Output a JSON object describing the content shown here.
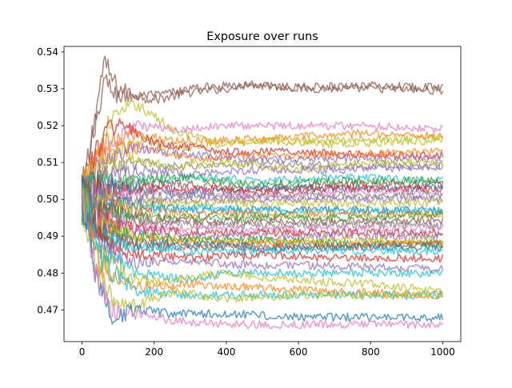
{
  "chart_data": {
    "type": "line",
    "title": "Exposure over runs",
    "xlabel": "",
    "ylabel": "",
    "xlim": [
      -50,
      1050
    ],
    "ylim": [
      0.4614,
      0.5415
    ],
    "x_ticks": [
      0,
      200,
      400,
      600,
      800,
      1000
    ],
    "x_tick_labels": [
      "0",
      "200",
      "400",
      "600",
      "800",
      "1000"
    ],
    "y_ticks": [
      0.47,
      0.48,
      0.49,
      0.5,
      0.51,
      0.52,
      0.53,
      0.54
    ],
    "y_tick_labels": [
      "0.47",
      "0.48",
      "0.49",
      "0.50",
      "0.51",
      "0.52",
      "0.53",
      "0.54"
    ],
    "grid": false,
    "legend": "none",
    "x_range": [
      0,
      1000
    ],
    "series_style": "alpha 0.7 thin lines, tab10 color cycle",
    "palette": [
      "#1f77b4",
      "#ff7f0e",
      "#2ca02c",
      "#d62728",
      "#9467bd",
      "#8c564b",
      "#e377c2",
      "#7f7f7f",
      "#bcbd22",
      "#17becf"
    ],
    "series": [
      {
        "color": "#8c564b",
        "x": [
          0,
          20,
          60,
          100,
          200,
          300,
          400,
          460,
          600,
          800,
          1000
        ],
        "values": [
          0.5,
          0.512,
          0.537,
          0.53,
          0.527,
          0.529,
          0.53,
          0.5315,
          0.53,
          0.53,
          0.5295
        ]
      },
      {
        "color": "#8c564b",
        "x": [
          0,
          20,
          60,
          100,
          200,
          300,
          400,
          600,
          800,
          1000
        ],
        "values": [
          0.5,
          0.51,
          0.532,
          0.528,
          0.528,
          0.53,
          0.531,
          0.5305,
          0.531,
          0.5303
        ]
      },
      {
        "color": "#bcbd22",
        "x": [
          0,
          30,
          80,
          150,
          250,
          350,
          500,
          700,
          1000
        ],
        "values": [
          0.5,
          0.508,
          0.522,
          0.526,
          0.519,
          0.516,
          0.516,
          0.516,
          0.517
        ]
      },
      {
        "color": "#e377c2",
        "x": [
          0,
          50,
          150,
          250,
          400,
          600,
          800,
          1000
        ],
        "values": [
          0.5,
          0.512,
          0.52,
          0.519,
          0.52,
          0.52,
          0.52,
          0.519
        ]
      },
      {
        "color": "#ff7f0e",
        "x": [
          0,
          50,
          150,
          250,
          400,
          600,
          800,
          1000
        ],
        "values": [
          0.5,
          0.514,
          0.518,
          0.516,
          0.516,
          0.517,
          0.518,
          0.517
        ]
      },
      {
        "color": "#bcbd22",
        "x": [
          0,
          50,
          150,
          300,
          500,
          700,
          1000
        ],
        "values": [
          0.5,
          0.51,
          0.516,
          0.514,
          0.516,
          0.515,
          0.516
        ]
      },
      {
        "color": "#d62728",
        "x": [
          0,
          50,
          100,
          200,
          400,
          600,
          800,
          1000
        ],
        "values": [
          0.5,
          0.516,
          0.521,
          0.515,
          0.513,
          0.513,
          0.512,
          0.512
        ]
      },
      {
        "color": "#ff7f0e",
        "x": [
          0,
          50,
          150,
          300,
          500,
          700,
          1000
        ],
        "values": [
          0.5,
          0.512,
          0.514,
          0.511,
          0.512,
          0.512,
          0.513
        ]
      },
      {
        "color": "#9467bd",
        "x": [
          0,
          50,
          150,
          300,
          500,
          700,
          1000
        ],
        "values": [
          0.5,
          0.509,
          0.514,
          0.512,
          0.511,
          0.511,
          0.511
        ]
      },
      {
        "color": "#7f7f7f",
        "x": [
          0,
          50,
          150,
          300,
          500,
          700,
          1000
        ],
        "values": [
          0.5,
          0.506,
          0.51,
          0.509,
          0.51,
          0.509,
          0.509
        ]
      },
      {
        "color": "#bcbd22",
        "x": [
          0,
          40,
          120,
          250,
          400,
          600,
          800,
          1000
        ],
        "values": [
          0.5,
          0.507,
          0.511,
          0.509,
          0.51,
          0.508,
          0.51,
          0.51
        ]
      },
      {
        "color": "#9467bd",
        "x": [
          0,
          50,
          150,
          300,
          500,
          700,
          1000
        ],
        "values": [
          0.5,
          0.505,
          0.508,
          0.507,
          0.508,
          0.508,
          0.509
        ]
      },
      {
        "color": "#17becf",
        "x": [
          0,
          50,
          150,
          300,
          500,
          700,
          1000
        ],
        "values": [
          0.5,
          0.503,
          0.505,
          0.506,
          0.505,
          0.506,
          0.505
        ]
      },
      {
        "color": "#2ca02c",
        "x": [
          0,
          50,
          150,
          300,
          500,
          700,
          1000
        ],
        "values": [
          0.5,
          0.504,
          0.505,
          0.506,
          0.504,
          0.505,
          0.505
        ]
      },
      {
        "color": "#8c564b",
        "x": [
          0,
          50,
          150,
          300,
          500,
          700,
          1000
        ],
        "values": [
          0.5,
          0.502,
          0.504,
          0.504,
          0.503,
          0.504,
          0.504
        ]
      },
      {
        "color": "#1f77b4",
        "x": [
          0,
          50,
          150,
          300,
          500,
          700,
          1000
        ],
        "values": [
          0.5,
          0.503,
          0.503,
          0.502,
          0.503,
          0.503,
          0.503
        ]
      },
      {
        "color": "#d62728",
        "x": [
          0,
          50,
          150,
          300,
          500,
          700,
          1000
        ],
        "values": [
          0.5,
          0.502,
          0.503,
          0.503,
          0.502,
          0.503,
          0.503
        ]
      },
      {
        "color": "#e377c2",
        "x": [
          0,
          50,
          150,
          300,
          500,
          700,
          1000
        ],
        "values": [
          0.5,
          0.501,
          0.502,
          0.502,
          0.501,
          0.502,
          0.502
        ]
      },
      {
        "color": "#7f7f7f",
        "x": [
          0,
          50,
          150,
          300,
          500,
          700,
          1000
        ],
        "values": [
          0.5,
          0.501,
          0.501,
          0.501,
          0.501,
          0.501,
          0.501
        ]
      },
      {
        "color": "#9467bd",
        "x": [
          0,
          50,
          150,
          300,
          500,
          700,
          1000
        ],
        "values": [
          0.5,
          0.5,
          0.5,
          0.5,
          0.5,
          0.5,
          0.5
        ]
      },
      {
        "color": "#bcbd22",
        "x": [
          0,
          50,
          150,
          300,
          500,
          700,
          1000
        ],
        "values": [
          0.5,
          0.499,
          0.499,
          0.499,
          0.499,
          0.499,
          0.499
        ]
      },
      {
        "color": "#1f77b4",
        "x": [
          0,
          20,
          100,
          200,
          300,
          400,
          600,
          800,
          1000
        ],
        "values": [
          0.5,
          0.499,
          0.499,
          0.498,
          0.497,
          0.497,
          0.497,
          0.497,
          0.497
        ]
      },
      {
        "color": "#17becf",
        "x": [
          0,
          50,
          150,
          300,
          500,
          700,
          1000
        ],
        "values": [
          0.5,
          0.498,
          0.497,
          0.498,
          0.497,
          0.497,
          0.497
        ]
      },
      {
        "color": "#ff7f0e",
        "x": [
          0,
          50,
          150,
          300,
          500,
          700,
          1000
        ],
        "values": [
          0.5,
          0.498,
          0.497,
          0.496,
          0.496,
          0.496,
          0.496
        ]
      },
      {
        "color": "#2ca02c",
        "x": [
          0,
          50,
          150,
          300,
          500,
          700,
          1000
        ],
        "values": [
          0.5,
          0.497,
          0.495,
          0.495,
          0.495,
          0.495,
          0.496
        ]
      },
      {
        "color": "#8c564b",
        "x": [
          0,
          50,
          150,
          300,
          500,
          700,
          1000
        ],
        "values": [
          0.5,
          0.497,
          0.495,
          0.494,
          0.494,
          0.494,
          0.494
        ]
      },
      {
        "color": "#7f7f7f",
        "x": [
          0,
          50,
          150,
          300,
          500,
          700,
          1000
        ],
        "values": [
          0.5,
          0.496,
          0.494,
          0.493,
          0.493,
          0.493,
          0.493
        ]
      },
      {
        "color": "#e377c2",
        "x": [
          0,
          50,
          150,
          300,
          500,
          700,
          1000
        ],
        "values": [
          0.5,
          0.495,
          0.493,
          0.492,
          0.492,
          0.492,
          0.492
        ]
      },
      {
        "color": "#d62728",
        "x": [
          0,
          50,
          150,
          300,
          500,
          700,
          1000
        ],
        "values": [
          0.5,
          0.494,
          0.492,
          0.491,
          0.491,
          0.491,
          0.491
        ]
      },
      {
        "color": "#9467bd",
        "x": [
          0,
          50,
          150,
          300,
          500,
          700,
          1000
        ],
        "values": [
          0.5,
          0.494,
          0.491,
          0.49,
          0.49,
          0.49,
          0.49
        ]
      },
      {
        "color": "#bcbd22",
        "x": [
          0,
          50,
          150,
          300,
          500,
          700,
          1000
        ],
        "values": [
          0.5,
          0.493,
          0.49,
          0.489,
          0.489,
          0.489,
          0.489
        ]
      },
      {
        "color": "#2ca02c",
        "x": [
          0,
          50,
          150,
          300,
          500,
          700,
          1000
        ],
        "values": [
          0.5,
          0.492,
          0.49,
          0.489,
          0.489,
          0.488,
          0.488
        ]
      },
      {
        "color": "#ff7f0e",
        "x": [
          0,
          50,
          150,
          300,
          500,
          700,
          1000
        ],
        "values": [
          0.5,
          0.491,
          0.489,
          0.488,
          0.488,
          0.488,
          0.488
        ]
      },
      {
        "color": "#1f77b4",
        "x": [
          0,
          50,
          150,
          300,
          500,
          700,
          1000
        ],
        "values": [
          0.5,
          0.491,
          0.488,
          0.488,
          0.487,
          0.487,
          0.487
        ]
      },
      {
        "color": "#8c564b",
        "x": [
          0,
          50,
          150,
          300,
          500,
          700,
          1000
        ],
        "values": [
          0.5,
          0.49,
          0.487,
          0.487,
          0.487,
          0.487,
          0.488
        ]
      },
      {
        "color": "#17becf",
        "x": [
          0,
          50,
          150,
          300,
          500,
          700,
          1000
        ],
        "values": [
          0.5,
          0.489,
          0.487,
          0.486,
          0.486,
          0.486,
          0.486
        ]
      },
      {
        "color": "#d62728",
        "x": [
          0,
          50,
          150,
          300,
          500,
          700,
          1000
        ],
        "values": [
          0.5,
          0.488,
          0.485,
          0.484,
          0.485,
          0.484,
          0.484
        ]
      },
      {
        "color": "#9467bd",
        "x": [
          0,
          50,
          150,
          300,
          500,
          700,
          1000
        ],
        "values": [
          0.5,
          0.487,
          0.483,
          0.483,
          0.482,
          0.482,
          0.481
        ]
      },
      {
        "color": "#17becf",
        "x": [
          0,
          50,
          150,
          300,
          400,
          500,
          700,
          1000
        ],
        "values": [
          0.5,
          0.485,
          0.48,
          0.478,
          0.48,
          0.48,
          0.48,
          0.48
        ]
      },
      {
        "color": "#bcbd22",
        "x": [
          0,
          50,
          150,
          250,
          400,
          600,
          800,
          1000
        ],
        "values": [
          0.5,
          0.484,
          0.478,
          0.478,
          0.48,
          0.478,
          0.477,
          0.475
        ]
      },
      {
        "color": "#ff7f0e",
        "x": [
          0,
          50,
          150,
          300,
          500,
          700,
          1000
        ],
        "values": [
          0.5,
          0.482,
          0.476,
          0.477,
          0.476,
          0.475,
          0.474
        ]
      },
      {
        "color": "#17becf",
        "x": [
          0,
          50,
          150,
          300,
          500,
          700,
          1000
        ],
        "values": [
          0.5,
          0.483,
          0.475,
          0.474,
          0.474,
          0.474,
          0.474
        ]
      },
      {
        "color": "#bcbd22",
        "x": [
          0,
          40,
          90,
          150,
          250,
          400,
          600,
          800,
          1000
        ],
        "values": [
          0.5,
          0.48,
          0.472,
          0.471,
          0.475,
          0.473,
          0.474,
          0.474,
          0.474
        ]
      },
      {
        "color": "#1f77b4",
        "x": [
          0,
          40,
          80,
          150,
          250,
          400,
          600,
          800,
          1000
        ],
        "values": [
          0.5,
          0.478,
          0.468,
          0.47,
          0.469,
          0.469,
          0.468,
          0.468,
          0.468
        ]
      },
      {
        "color": "#e377c2",
        "x": [
          0,
          40,
          80,
          150,
          250,
          400,
          600,
          800,
          1000
        ],
        "values": [
          0.5,
          0.479,
          0.47,
          0.469,
          0.467,
          0.466,
          0.466,
          0.466,
          0.466
        ]
      }
    ]
  }
}
